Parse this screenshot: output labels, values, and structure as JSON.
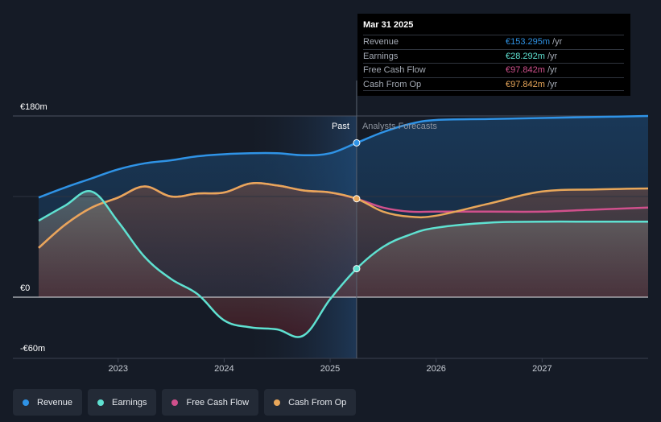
{
  "chart_data": {
    "type": "line",
    "y_axis": {
      "ticks": [
        "€180m",
        "€0",
        "-€60m"
      ],
      "ylim": [
        -60,
        180
      ],
      "unit": "€m"
    },
    "x_axis": {
      "ticks": [
        "2023",
        "2024",
        "2025",
        "2026",
        "2027"
      ]
    },
    "divider_labels": {
      "past": "Past",
      "forecast": "Analysts Forecasts"
    },
    "divider_x": 2025.25,
    "series": [
      {
        "name": "Revenue",
        "color": "#2f93e6",
        "x": [
          2022.25,
          2022.5,
          2022.75,
          2023.0,
          2023.25,
          2023.5,
          2023.75,
          2024.0,
          2024.25,
          2024.5,
          2024.75,
          2025.0,
          2025.25,
          2025.5,
          2025.75,
          2026.0,
          2026.5,
          2027.0,
          2027.5,
          2028.0
        ],
        "y": [
          99,
          109,
          118,
          127,
          133,
          136,
          140,
          142,
          143,
          143,
          141,
          143,
          153.3,
          164,
          172,
          176,
          177,
          178,
          179,
          180
        ]
      },
      {
        "name": "Earnings",
        "color": "#5fe1d1",
        "x": [
          2022.25,
          2022.5,
          2022.75,
          2023.0,
          2023.25,
          2023.5,
          2023.75,
          2024.0,
          2024.25,
          2024.5,
          2024.75,
          2025.0,
          2025.25,
          2025.5,
          2025.75,
          2026.0,
          2026.5,
          2027.0,
          2027.5,
          2028.0
        ],
        "y": [
          76,
          91,
          105,
          75,
          40,
          18,
          3,
          -23,
          -30,
          -32,
          -38,
          -2,
          28.3,
          50,
          62,
          69,
          74,
          75,
          75,
          75
        ]
      },
      {
        "name": "Free Cash Flow",
        "color": "#d0508c",
        "x": [
          2022.25,
          2022.5,
          2022.75,
          2023.0,
          2023.25,
          2023.5,
          2023.75,
          2024.0,
          2024.25,
          2024.5,
          2024.75,
          2025.0,
          2025.25,
          2025.5,
          2025.75,
          2026.0,
          2026.5,
          2027.0,
          2027.5,
          2028.0
        ],
        "y": [
          49,
          72,
          89,
          99,
          110,
          100,
          103,
          104,
          113,
          111,
          106,
          104,
          97.8,
          89,
          85,
          85,
          85,
          85,
          87,
          89
        ]
      },
      {
        "name": "Cash From Op",
        "color": "#e8a75a",
        "x": [
          2022.25,
          2022.5,
          2022.75,
          2023.0,
          2023.25,
          2023.5,
          2023.75,
          2024.0,
          2024.25,
          2024.5,
          2024.75,
          2025.0,
          2025.25,
          2025.5,
          2025.75,
          2026.0,
          2026.5,
          2027.0,
          2027.5,
          2028.0
        ],
        "y": [
          49,
          72,
          89,
          99,
          110,
          100,
          103,
          104,
          113,
          111,
          106,
          104,
          97.8,
          85,
          80,
          81,
          93,
          105,
          107,
          108
        ]
      }
    ]
  },
  "tooltip": {
    "date": "Mar 31 2025",
    "rows": [
      {
        "label": "Revenue",
        "value": "€153.295m",
        "unit": "/yr",
        "color": "#2f93e6"
      },
      {
        "label": "Earnings",
        "value": "€28.292m",
        "unit": "/yr",
        "color": "#5fe1d1"
      },
      {
        "label": "Free Cash Flow",
        "value": "€97.842m",
        "unit": "/yr",
        "color": "#d0508c"
      },
      {
        "label": "Cash From Op",
        "value": "€97.842m",
        "unit": "/yr",
        "color": "#e8a75a"
      }
    ]
  },
  "legend": [
    {
      "label": "Revenue",
      "color": "#2f93e6"
    },
    {
      "label": "Earnings",
      "color": "#5fe1d1"
    },
    {
      "label": "Free Cash Flow",
      "color": "#d0508c"
    },
    {
      "label": "Cash From Op",
      "color": "#e8a75a"
    }
  ]
}
